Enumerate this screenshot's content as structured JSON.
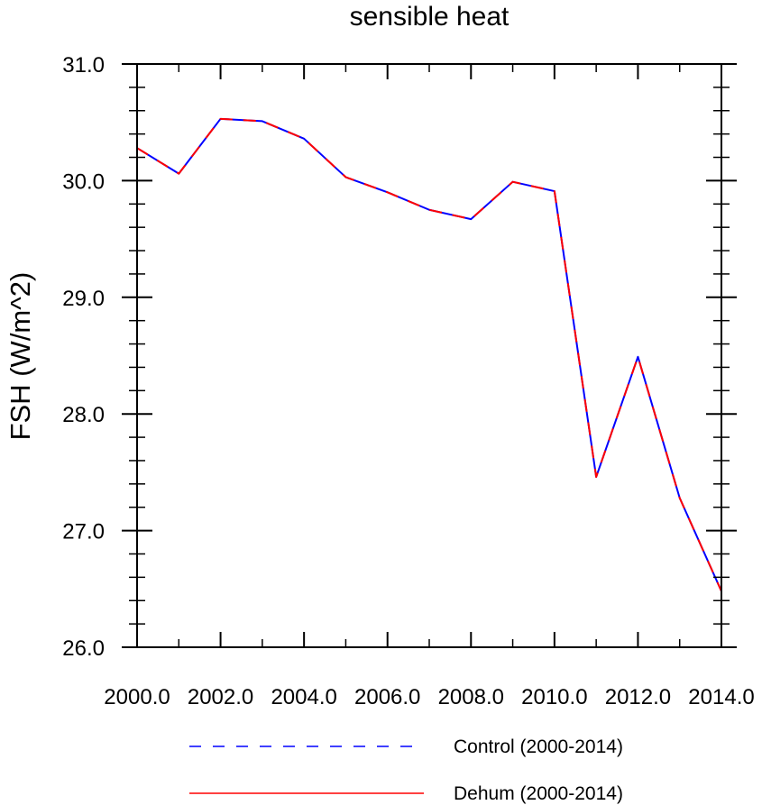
{
  "chart_data": {
    "type": "line",
    "title": "sensible heat",
    "xlabel": "",
    "ylabel": "FSH  (W/m^2)",
    "xlim": [
      2000,
      2014
    ],
    "ylim": [
      26,
      31
    ],
    "x_ticks": [
      2000,
      2002,
      2004,
      2006,
      2008,
      2010,
      2012,
      2014
    ],
    "x_tick_labels": [
      "2000.0",
      "2002.0",
      "2004.0",
      "2006.0",
      "2008.0",
      "2010.0",
      "2012.0",
      "2014.0"
    ],
    "y_ticks": [
      26,
      27,
      28,
      29,
      30,
      31
    ],
    "y_tick_labels": [
      "26.0",
      "27.0",
      "28.0",
      "29.0",
      "30.0",
      "31.0"
    ],
    "grid": false,
    "legend_position": "bottom",
    "x": [
      2000,
      2001,
      2002,
      2003,
      2004,
      2005,
      2006,
      2007,
      2008,
      2009,
      2010,
      2011,
      2012,
      2013,
      2014
    ],
    "series": [
      {
        "name": "Control (2000-2014)",
        "color": "#0000ff",
        "style": "dashed",
        "values": [
          30.28,
          30.06,
          30.53,
          30.51,
          30.36,
          30.03,
          29.9,
          29.75,
          29.67,
          29.99,
          29.91,
          27.46,
          28.49,
          27.28,
          26.48
        ]
      },
      {
        "name": "Dehum (2000-2014)",
        "color": "#ff0000",
        "style": "solid",
        "values": [
          30.28,
          30.06,
          30.53,
          30.51,
          30.36,
          30.03,
          29.9,
          29.75,
          29.67,
          29.99,
          29.91,
          27.46,
          28.49,
          27.28,
          26.48
        ]
      }
    ]
  }
}
